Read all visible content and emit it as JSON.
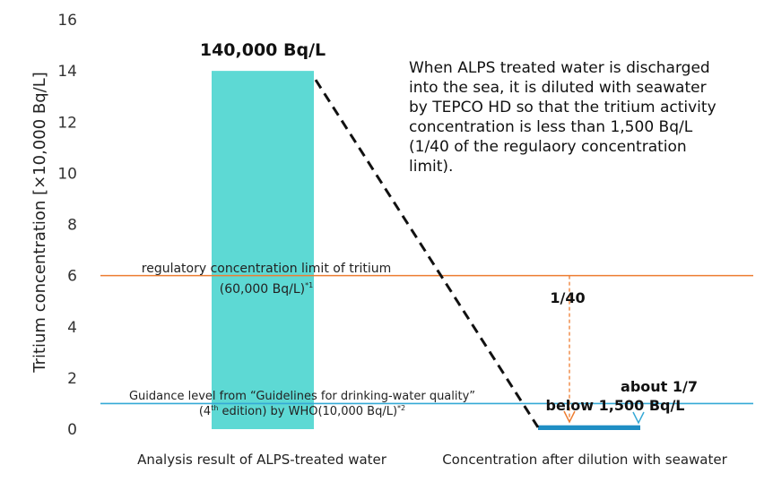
{
  "chart_data": {
    "type": "bar",
    "categories": [
      "Analysis result of ALPS-treated water",
      "Concentration after dilution with seawater"
    ],
    "values": [
      14,
      0.15
    ],
    "ylabel": "Tritium concentration [×10,000 Bq/L]",
    "ylim": [
      0,
      16
    ],
    "yticks": [
      0,
      2,
      4,
      6,
      8,
      10,
      12,
      14,
      16
    ],
    "grid": false,
    "colors": {
      "bar1": "#5dd9d4",
      "bar2": "#1f8ec4",
      "limit_line": "#ed7d31",
      "guidance_line": "#35a9d6"
    },
    "data_labels": {
      "bar1": "140,000 Bq/L",
      "bar2": "below 1,500 Bq/L"
    },
    "reference_lines": [
      {
        "value": 6,
        "label_line1": "regulatory concentration limit of tritium",
        "label_line2": "(60,000 Bq/L)",
        "label_sup": "*1"
      },
      {
        "value": 1,
        "label_line1": "Guidance level from “Guidelines for drinking-water quality”",
        "label_prefix": "(4",
        "label_prefix_sup": "th",
        "label_line2": " edition) by WHO(10,000 Bq/L)",
        "label_sup": "*2"
      }
    ],
    "annotations": {
      "note_lines": [
        "When ALPS treated water is discharged",
        "into the sea, it is diluted with seawater",
        "by TEPCO HD so that the tritium activity",
        "concentration is less than 1,500 Bq/L",
        "(1/40 of the regulaory concentration",
        "limit)."
      ],
      "ratio_limit": "1/40",
      "ratio_guidance": "about 1/7"
    }
  }
}
